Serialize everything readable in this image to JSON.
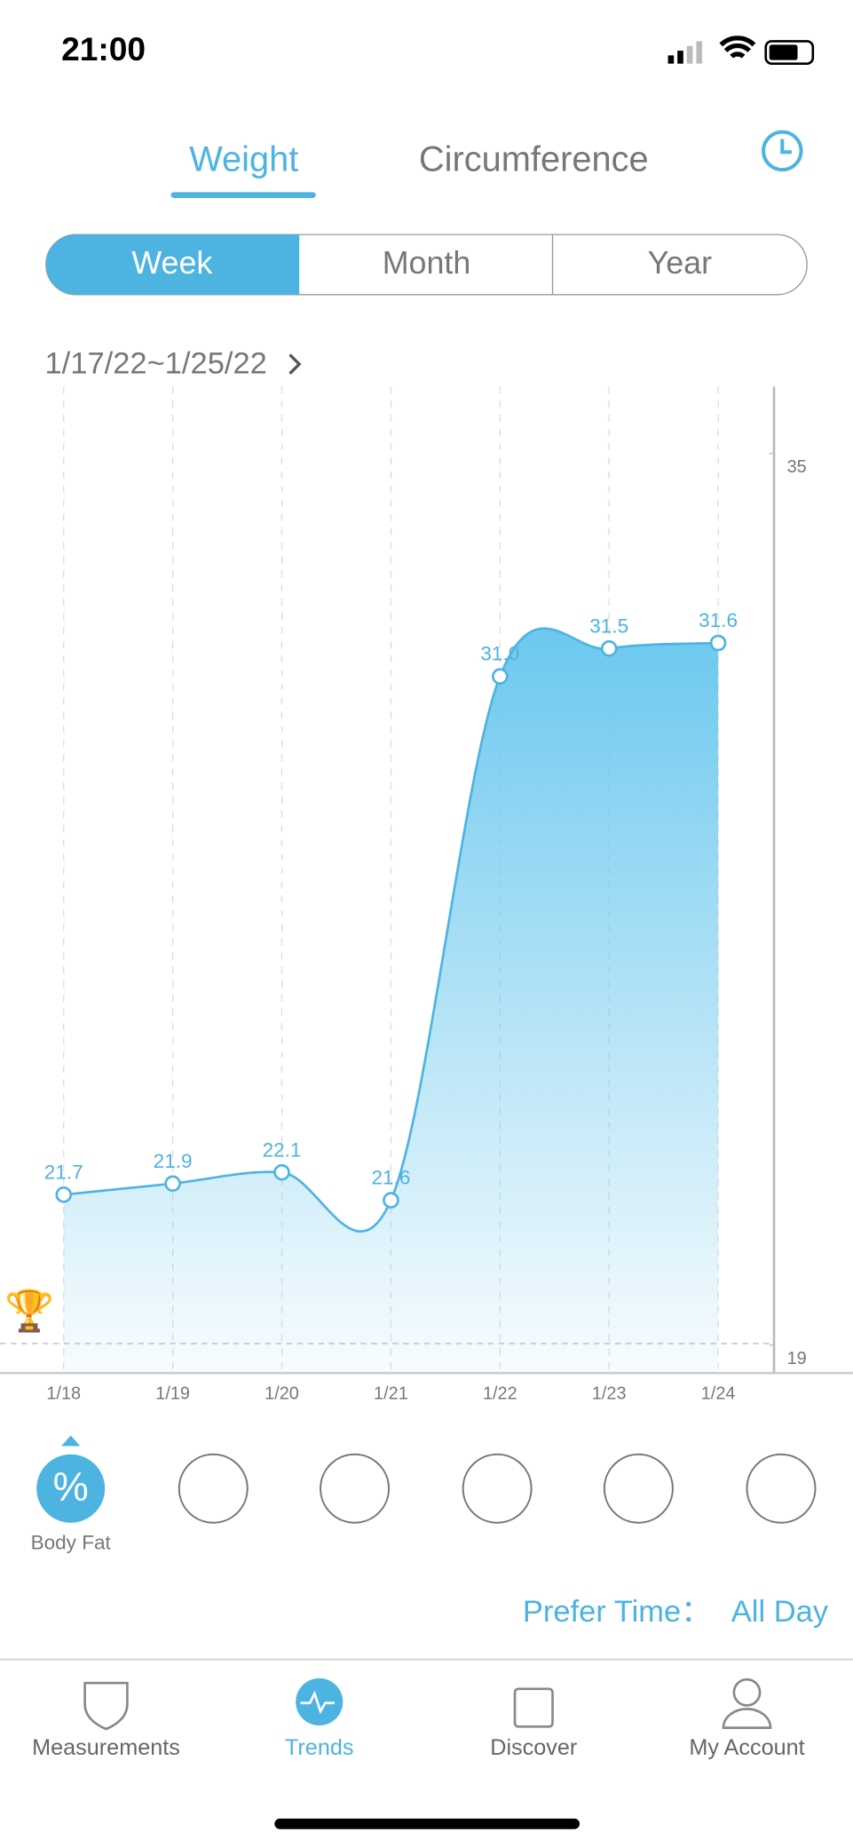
{
  "status_bar": {
    "time": "21:00"
  },
  "tabs": [
    "Weight",
    "Circumference"
  ],
  "periods": [
    "Week",
    "Month",
    "Year"
  ],
  "date_range": "1/17/22~1/25/22",
  "chart_data": {
    "type": "line",
    "categories": [
      "1/18",
      "1/19",
      "1/20",
      "1/21",
      "1/22",
      "1/23",
      "1/24"
    ],
    "values": [
      21.7,
      21.9,
      22.1,
      21.6,
      31.0,
      31.5,
      31.6
    ],
    "value_labels": [
      "21.7",
      "21.9",
      "22.1",
      "21.6",
      "31.0",
      "31.5",
      "31.6"
    ],
    "color": "#4db3e0",
    "ylim": [
      18.5,
      36.2
    ],
    "yticks": [
      19,
      35
    ]
  },
  "metric": "Body Fat",
  "prefer_time": {
    "label": "Prefer Time：",
    "value": "All Day"
  },
  "nav": [
    "Measurements",
    "Trends",
    "Discover",
    "My Account"
  ]
}
